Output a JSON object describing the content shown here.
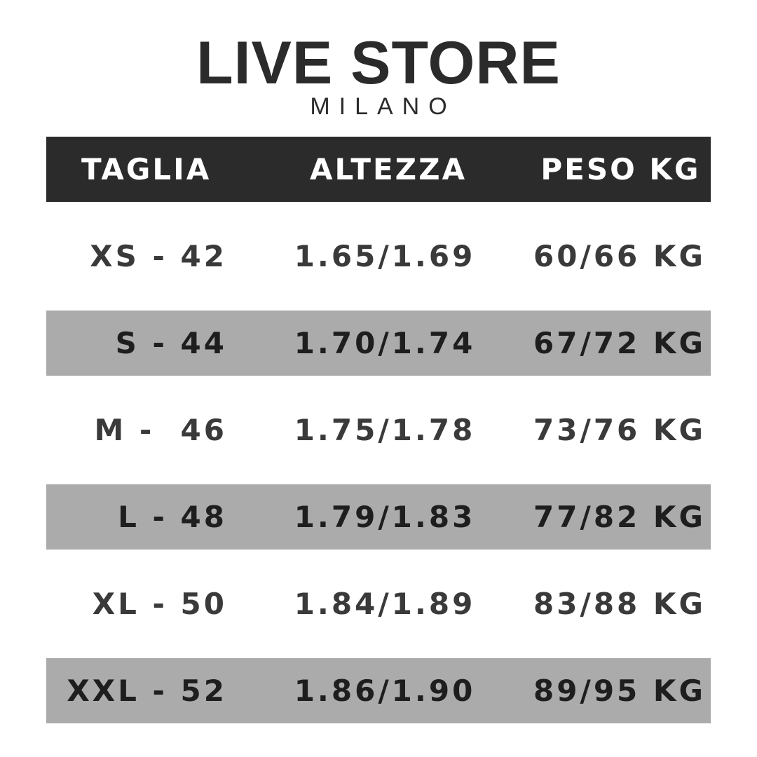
{
  "logo": {
    "brand": "LIVE STORE",
    "city": "MILANO"
  },
  "table": {
    "headers": [
      "TAGLIA",
      "ALTEZZA",
      "PESO KG"
    ],
    "rows": [
      {
        "size": "XS - 42",
        "height": "1.65/1.69",
        "weight": "60/66 KG"
      },
      {
        "size": "S - 44",
        "height": "1.70/1.74",
        "weight": "67/72 KG"
      },
      {
        "size": "M -  46",
        "height": "1.75/1.78",
        "weight": "73/76 KG"
      },
      {
        "size": "L - 48",
        "height": "1.79/1.83",
        "weight": "77/82 KG"
      },
      {
        "size": "XL - 50",
        "height": "1.84/1.89",
        "weight": "83/88 KG"
      },
      {
        "size": "XXL - 52",
        "height": "1.86/1.90",
        "weight": "89/95 KG"
      }
    ]
  },
  "colors": {
    "header_bg": "#2b2b2b",
    "stripe_bg": "#ababab",
    "text": "#2a2a2a"
  }
}
